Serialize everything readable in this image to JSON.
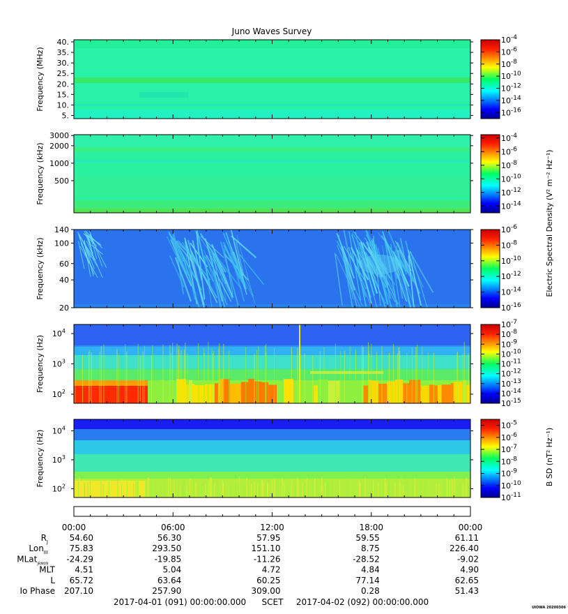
{
  "chart_data": {
    "type": "heatmap",
    "title": "Juno Waves Survey",
    "panels": [
      {
        "name": "hf-waveform",
        "ylabel": "Frequency (MHz)",
        "yscale": "linear",
        "ylim": [
          3.5,
          41
        ],
        "yticks": [
          {
            "value": 40,
            "label": "40."
          },
          {
            "value": 35,
            "label": "35."
          },
          {
            "value": 30,
            "label": "30."
          },
          {
            "value": 25,
            "label": "25."
          },
          {
            "value": 20,
            "label": "20."
          },
          {
            "value": 15,
            "label": "15."
          },
          {
            "value": 10,
            "label": "10."
          },
          {
            "value": 5,
            "label": "5."
          }
        ],
        "colorbar": {
          "range": [
            -17,
            -4
          ],
          "ticks": [
            {
              "exp": -4,
              "label": "-4"
            },
            {
              "exp": -6,
              "label": "-6"
            },
            {
              "exp": -8,
              "label": "-8"
            },
            {
              "exp": -10,
              "label": "-10"
            },
            {
              "exp": -12,
              "label": "-12"
            },
            {
              "exp": -14,
              "label": "-14"
            },
            {
              "exp": -16,
              "label": "-16"
            }
          ]
        },
        "base_color": "#27f2a8"
      },
      {
        "name": "hf-khz",
        "ylabel": "Frequency (kHz)",
        "yscale": "log",
        "ylim": [
          140,
          3100
        ],
        "yticks": [
          {
            "value": 3000,
            "label": "3000"
          },
          {
            "value": 2000,
            "label": "2000"
          },
          {
            "value": 1000,
            "label": "1000"
          },
          {
            "value": 500,
            "label": "500"
          }
        ],
        "colorbar": {
          "range": [
            -15,
            -3.5
          ],
          "ticks": [
            {
              "exp": -4,
              "label": "-4"
            },
            {
              "exp": -6,
              "label": "-6"
            },
            {
              "exp": -8,
              "label": "-8"
            },
            {
              "exp": -10,
              "label": "-10"
            },
            {
              "exp": -12,
              "label": "-12"
            },
            {
              "exp": -14,
              "label": "-14"
            }
          ]
        },
        "base_color": "#2af0a0"
      },
      {
        "name": "lf-khz",
        "ylabel": "Frequency (kHz)",
        "yscale": "log",
        "ylim": [
          20,
          140
        ],
        "yticks": [
          {
            "value": 140,
            "label": "140"
          },
          {
            "value": 100,
            "label": "100"
          },
          {
            "value": 60,
            "label": "60"
          },
          {
            "value": 40,
            "label": "40"
          },
          {
            "value": 20,
            "label": "20"
          }
        ],
        "colorbar": {
          "range": [
            -16,
            -6
          ],
          "ticks": [
            {
              "exp": -6,
              "label": "-6"
            },
            {
              "exp": -8,
              "label": "-8"
            },
            {
              "exp": -10,
              "label": "-10"
            },
            {
              "exp": -12,
              "label": "-12"
            },
            {
              "exp": -14,
              "label": "-14"
            },
            {
              "exp": -16,
              "label": "-16"
            }
          ]
        },
        "base_color": "#2b73ec"
      },
      {
        "name": "lf-hz",
        "ylabel": "Frequency (Hz)",
        "yscale": "log",
        "ylim": [
          50,
          20000
        ],
        "yticks": [
          {
            "value": 10000,
            "label": "10",
            "exp": "4"
          },
          {
            "value": 1000,
            "label": "10",
            "exp": "3"
          },
          {
            "value": 100,
            "label": "10",
            "exp": "2"
          }
        ],
        "colorbar": {
          "range": [
            -15,
            -7
          ],
          "ticks": [
            {
              "exp": -7,
              "label": "-7"
            },
            {
              "exp": -8,
              "label": "-8"
            },
            {
              "exp": -9,
              "label": "-9"
            },
            {
              "exp": -10,
              "label": "-10"
            },
            {
              "exp": -11,
              "label": "-11"
            },
            {
              "exp": -12,
              "label": "-12"
            },
            {
              "exp": -13,
              "label": "-13"
            },
            {
              "exp": -14,
              "label": "-14"
            },
            {
              "exp": -15,
              "label": "-15"
            }
          ]
        },
        "base_color": "#2f8ff0"
      },
      {
        "name": "magnetic-hz",
        "ylabel": "Frequency (Hz)",
        "yscale": "log",
        "ylim": [
          50,
          25000
        ],
        "yticks": [
          {
            "value": 10000,
            "label": "10",
            "exp": "4"
          },
          {
            "value": 1000,
            "label": "10",
            "exp": "3"
          },
          {
            "value": 100,
            "label": "10",
            "exp": "2"
          }
        ],
        "colorbar": {
          "range": [
            -11,
            -4.5
          ],
          "ticks": [
            {
              "exp": -5,
              "label": "-5"
            },
            {
              "exp": -6,
              "label": "-6"
            },
            {
              "exp": -7,
              "label": "-7"
            },
            {
              "exp": -8,
              "label": "-8"
            },
            {
              "exp": -9,
              "label": "-9"
            },
            {
              "exp": -10,
              "label": "-10"
            },
            {
              "exp": -11,
              "label": "-11"
            }
          ]
        },
        "base_color": "#2fe3c0"
      }
    ],
    "electric_colorbar_label": "Electric Spectral Density (V² m⁻² Hz⁻¹)",
    "magnetic_colorbar_label": "B SD (nT² Hz⁻¹)",
    "time_ticks": [
      "00:00",
      "06:00",
      "12:00",
      "18:00",
      "00:00"
    ],
    "ephemeris": [
      {
        "label": "R",
        "sub": "J",
        "values": [
          "54.60",
          "56.30",
          "57.95",
          "59.55",
          "61.11"
        ]
      },
      {
        "label": "Lon",
        "sub": "III",
        "values": [
          "75.83",
          "293.50",
          "151.10",
          "8.75",
          "226.40"
        ]
      },
      {
        "label": "MLat",
        "sub": "JRM09",
        "values": [
          "-24.29",
          "-19.85",
          "-11.26",
          "-28.52",
          "-9.02"
        ]
      },
      {
        "label": "MLT",
        "sub": "",
        "values": [
          "4.51",
          "5.04",
          "4.72",
          "4.84",
          "4.90"
        ]
      },
      {
        "label": "L",
        "sub": "",
        "values": [
          "65.72",
          "63.64",
          "60.25",
          "77.14",
          "62.65"
        ]
      },
      {
        "label": "Io Phase",
        "sub": "",
        "values": [
          "207.10",
          "257.90",
          "309.00",
          "0.28",
          "51.43"
        ]
      }
    ],
    "scet": {
      "start": "2017-04-01 (091) 00:00:00.000",
      "label": "SCET",
      "end": "2017-04-02 (092) 00:00:00.000"
    },
    "credit": "UIOWA 20200306"
  }
}
